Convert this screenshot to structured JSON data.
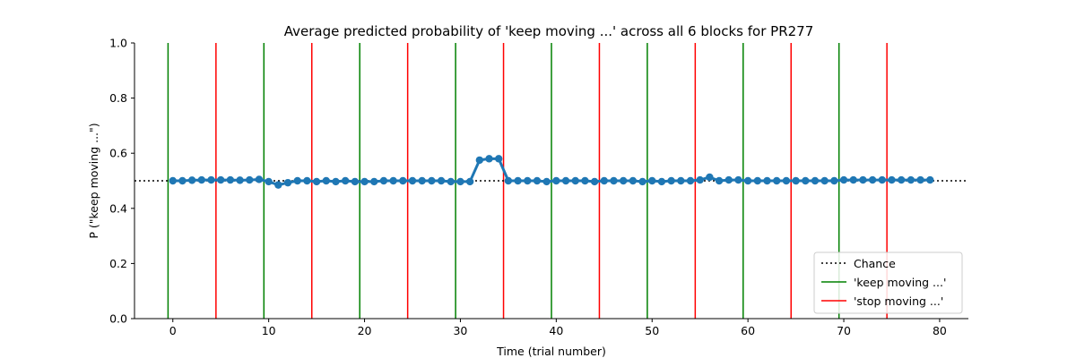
{
  "chart_data": {
    "type": "line",
    "title": "Average predicted probability of 'keep moving ...' across all 6 blocks for PR277",
    "xlabel": "Time (trial number)",
    "ylabel": "P (\"keep moving ...\")",
    "xlim": [
      -4,
      83
    ],
    "ylim": [
      0.0,
      1.0
    ],
    "xticks": [
      0,
      10,
      20,
      30,
      40,
      50,
      60,
      70,
      80
    ],
    "yticks": [
      0.0,
      0.2,
      0.4,
      0.6,
      0.8,
      1.0
    ],
    "xtick_labels": [
      "0",
      "10",
      "20",
      "30",
      "40",
      "50",
      "60",
      "70",
      "80"
    ],
    "ytick_labels": [
      "0.0",
      "0.2",
      "0.4",
      "0.6",
      "0.8",
      "1.0"
    ],
    "grid": false,
    "legend_position": "lower-right",
    "chance_level": 0.5,
    "series": [
      {
        "color": "#1f77b4",
        "x": [
          0,
          1,
          2,
          3,
          4,
          5,
          6,
          7,
          8,
          9,
          10,
          11,
          12,
          13,
          14,
          15,
          16,
          17,
          18,
          19,
          20,
          21,
          22,
          23,
          24,
          25,
          26,
          27,
          28,
          29,
          30,
          31,
          32,
          33,
          34,
          35,
          36,
          37,
          38,
          39,
          40,
          41,
          42,
          43,
          44,
          45,
          46,
          47,
          48,
          49,
          50,
          51,
          52,
          53,
          54,
          55,
          56,
          57,
          58,
          59,
          60,
          61,
          62,
          63,
          64,
          65,
          66,
          67,
          68,
          69,
          70,
          71,
          72,
          73,
          74,
          75,
          76,
          77,
          78,
          79
        ],
        "values": [
          0.5,
          0.5,
          0.502,
          0.503,
          0.503,
          0.503,
          0.503,
          0.502,
          0.503,
          0.505,
          0.497,
          0.485,
          0.493,
          0.5,
          0.5,
          0.497,
          0.5,
          0.497,
          0.5,
          0.497,
          0.497,
          0.497,
          0.5,
          0.5,
          0.5,
          0.5,
          0.5,
          0.5,
          0.5,
          0.497,
          0.497,
          0.497,
          0.575,
          0.58,
          0.58,
          0.5,
          0.5,
          0.5,
          0.5,
          0.497,
          0.5,
          0.5,
          0.5,
          0.5,
          0.497,
          0.5,
          0.5,
          0.5,
          0.5,
          0.497,
          0.5,
          0.497,
          0.5,
          0.5,
          0.5,
          0.503,
          0.513,
          0.5,
          0.503,
          0.503,
          0.5,
          0.5,
          0.5,
          0.5,
          0.5,
          0.5,
          0.5,
          0.5,
          0.5,
          0.5,
          0.503,
          0.503,
          0.503,
          0.503,
          0.503,
          0.503,
          0.503,
          0.503,
          0.503,
          0.503
        ]
      }
    ],
    "keep_moving_lines": [
      -0.5,
      9.5,
      19.5,
      29.5,
      39.5,
      49.5,
      59.5,
      69.5
    ],
    "stop_moving_lines": [
      4.5,
      14.5,
      24.5,
      34.5,
      44.5,
      54.5,
      64.5,
      74.5
    ],
    "colors": {
      "series": "#1f77b4",
      "keep": "#008000",
      "stop": "#ff0000",
      "chance": "#000000"
    },
    "legend": [
      {
        "label": "Chance",
        "style": "dotted",
        "color": "#000000"
      },
      {
        "label": "'keep moving ...'",
        "style": "solid",
        "color": "#008000"
      },
      {
        "label": "'stop moving ...'",
        "style": "solid",
        "color": "#ff0000"
      }
    ]
  }
}
